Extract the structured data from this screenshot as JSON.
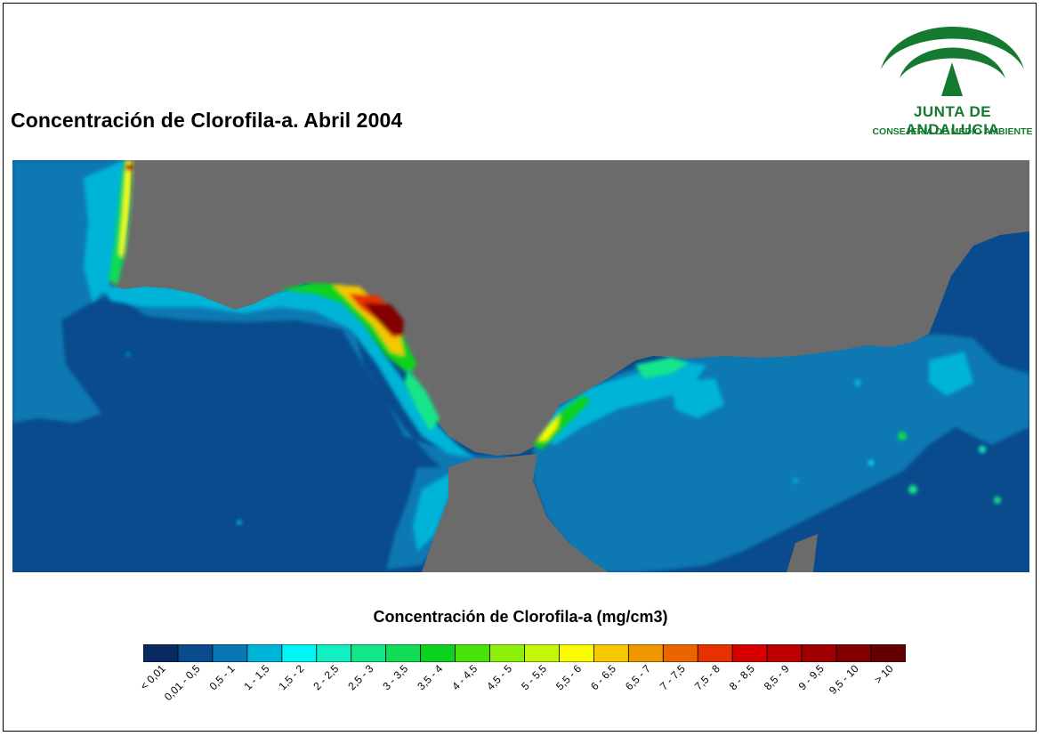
{
  "title": "Concentración de Clorofila-a. Abril 2004",
  "logo": {
    "name": "JUNTA DE ANDALUCIA",
    "subtitle": "CONSEJERÍA DE MEDIO AMBIENTE",
    "color": "#157a2f"
  },
  "map": {
    "land_color": "#6b6b6b",
    "sea_dominant_class": "0,01 - 0,5"
  },
  "legend": {
    "title": "Concentración de Clorofila-a (mg/cm3)",
    "classes": [
      {
        "label": "< 0,01",
        "color": "#0a2a64"
      },
      {
        "label": "0,01 - 0,5",
        "color": "#094b8c"
      },
      {
        "label": "0,5 - 1",
        "color": "#0978b2"
      },
      {
        "label": "1 - 1,5",
        "color": "#00b4d8"
      },
      {
        "label": "1,5 - 2",
        "color": "#00f5f5"
      },
      {
        "label": "2 - 2,5",
        "color": "#12f0c2"
      },
      {
        "label": "2,5 - 3",
        "color": "#14e68a"
      },
      {
        "label": "3 - 3,5",
        "color": "#10dc55"
      },
      {
        "label": "3,5 - 4",
        "color": "#0ad21e"
      },
      {
        "label": "4 - 4,5",
        "color": "#46e20a"
      },
      {
        "label": "4,5 - 5",
        "color": "#8cf00a"
      },
      {
        "label": "5 - 5,5",
        "color": "#c3f70a"
      },
      {
        "label": "5,5 - 6",
        "color": "#fafa00"
      },
      {
        "label": "6 - 6,5",
        "color": "#f5c800"
      },
      {
        "label": "6,5 - 7",
        "color": "#f09600"
      },
      {
        "label": "7 - 7,5",
        "color": "#eb6400"
      },
      {
        "label": "7,5 - 8",
        "color": "#e63200"
      },
      {
        "label": "8 - 8,5",
        "color": "#d70000"
      },
      {
        "label": "8,5 - 9",
        "color": "#be0000"
      },
      {
        "label": "9 - 9,5",
        "color": "#a00000"
      },
      {
        "label": "9,5 - 10",
        "color": "#820000"
      },
      {
        "label": "> 10",
        "color": "#640000"
      }
    ]
  }
}
